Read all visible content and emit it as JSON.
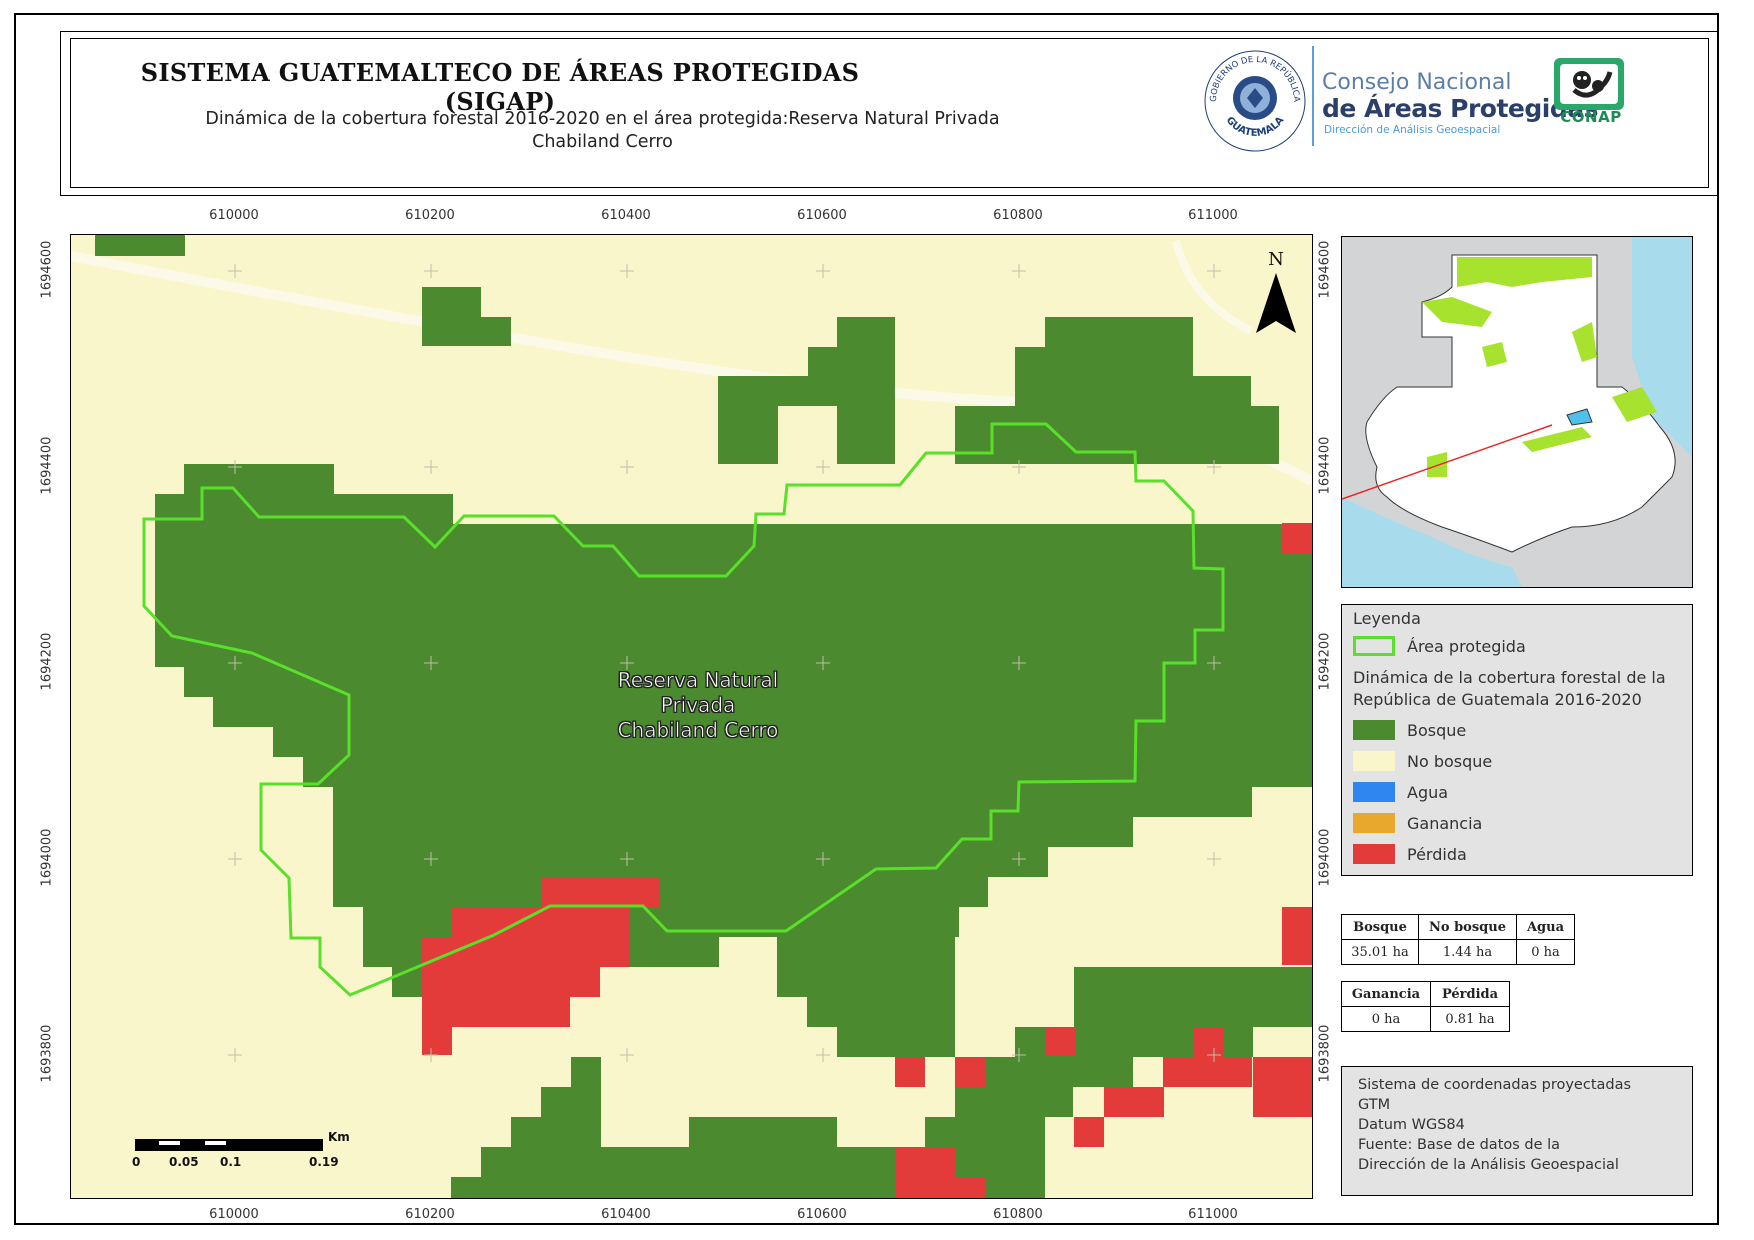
{
  "header": {
    "title": "SISTEMA GUATEMALTECO DE ÁREAS PROTEGIDAS  (SIGAP)",
    "subtitle_line1": "Dinámica de la cobertura forestal 2016-2020 en el área protegida:Reserva Natural Privada",
    "subtitle_line2": "Chabiland Cerro",
    "seal_top": "GOBIERNO DE LA REPÚBLICA",
    "seal_bottom": "GUATEMALA",
    "org_line1": "Consejo Nacional",
    "org_line2": "de Áreas Protegidas",
    "org_line3": "Dirección de Análisis Geoespacial",
    "logo_text": "CONAP"
  },
  "map": {
    "reserve_label_line1": "Reserva Natural",
    "reserve_label_line2": "Privada",
    "reserve_label_line3": "Chabiland Cerro",
    "north_label": "N",
    "x_ticks": [
      "610000",
      "610200",
      "610400",
      "610600",
      "610800",
      "611000"
    ],
    "y_ticks": [
      "1694600",
      "1694400",
      "1694200",
      "1694000",
      "1693800"
    ],
    "scale": {
      "unit": "Km",
      "labels": [
        "0",
        "0.05",
        "0.1",
        "0.19"
      ]
    },
    "colors": {
      "bosque": "#4b8a2f",
      "no_bosque": "#f9f6cc",
      "perdida": "#e33a3a",
      "boundary": "#59e02a"
    }
  },
  "legend": {
    "title": "Leyenda",
    "area": "Área protegida",
    "dynamics_line1": "Dinámica de la cobertura forestal de la",
    "dynamics_line2": "República de Guatemala 2016-2020",
    "items": [
      {
        "label": "Bosque",
        "color": "#4b8a2f"
      },
      {
        "label": "No bosque",
        "color": "#f9f6cc"
      },
      {
        "label": "Agua",
        "color": "#2f86f0"
      },
      {
        "label": "Ganancia",
        "color": "#e8a82e"
      },
      {
        "label": "Pérdida",
        "color": "#e33a3a"
      }
    ]
  },
  "stats1": {
    "headers": [
      "Bosque",
      "No bosque",
      "Agua"
    ],
    "values": [
      "35.01 ha",
      "1.44 ha",
      "0 ha"
    ]
  },
  "stats2": {
    "headers": [
      "Ganancia",
      "Pérdida"
    ],
    "values": [
      "0 ha",
      "0.81 ha"
    ]
  },
  "info": {
    "line1": "Sistema de coordenadas proyectadas",
    "line2": "GTM",
    "line3": "Datum WGS84",
    "line4": "Fuente: Base de datos de la",
    "line5": "Dirección de la Análisis Geoespacial"
  }
}
